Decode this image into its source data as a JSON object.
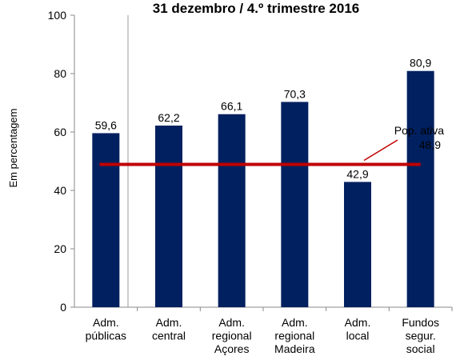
{
  "chart_data": {
    "type": "bar",
    "title": "31 dezembro / 4.º trimestre 2016",
    "y_label": "Em percentagem",
    "categories": [
      [
        "Adm.",
        "públicas"
      ],
      [
        "Adm.",
        "central"
      ],
      [
        "Adm.",
        "regional",
        "Açores"
      ],
      [
        "Adm.",
        "regional",
        "Madeira"
      ],
      [
        "Adm.",
        "local"
      ],
      [
        "Fundos",
        "segur.",
        "social"
      ]
    ],
    "values": [
      59.6,
      62.2,
      66.1,
      70.3,
      42.9,
      80.9
    ],
    "value_labels": [
      "59,6",
      "62,2",
      "66,1",
      "70,3",
      "42,9",
      "80,9"
    ],
    "color": "#002060",
    "ylim": [
      0,
      100
    ],
    "yticks": [
      0,
      20,
      40,
      60,
      80,
      100
    ],
    "reference_line": {
      "value": 48.9,
      "label": "Pop. ativa",
      "value_label": "48,9",
      "color": "#c00000"
    }
  }
}
